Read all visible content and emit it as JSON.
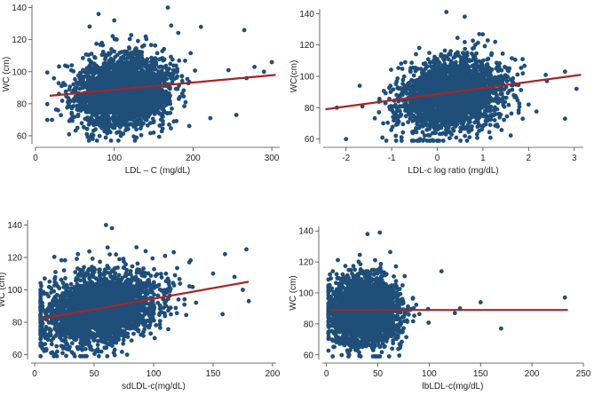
{
  "chart_data": [
    {
      "type": "scatter",
      "xlabel": "LDL – C (mg/dL)",
      "ylabel": "WC (cm)",
      "xlim": [
        0,
        310
      ],
      "ylim": [
        55,
        142
      ],
      "xticks": [
        0,
        100,
        200,
        300
      ],
      "yticks": [
        60,
        80,
        100,
        120,
        140
      ],
      "cloud": {
        "x_center": 110,
        "x_spread": 30,
        "x_min": 15,
        "x_max": 240,
        "y_center": 88,
        "y_spread": 11,
        "n": 2600
      },
      "outliers": [
        [
          168,
          140
        ],
        [
          80,
          136
        ],
        [
          100,
          132
        ],
        [
          210,
          128
        ],
        [
          265,
          126
        ],
        [
          245,
          101
        ],
        [
          300,
          106
        ],
        [
          278,
          103
        ],
        [
          255,
          73
        ],
        [
          268,
          96
        ],
        [
          290,
          100
        ],
        [
          222,
          71
        ]
      ],
      "fit_line": {
        "x": [
          18,
          305
        ],
        "y": [
          85,
          98
        ]
      }
    },
    {
      "type": "scatter",
      "xlabel": "LDL-c log ratio (mg/dL)",
      "ylabel": "WC(cm)",
      "xlim": [
        -2.5,
        3.2
      ],
      "ylim": [
        57,
        143
      ],
      "xticks": [
        -2,
        -1,
        0,
        1,
        2,
        3
      ],
      "yticks": [
        60,
        80,
        100,
        120,
        140
      ],
      "cloud": {
        "x_center": 0.3,
        "x_spread": 0.55,
        "x_min": -2.2,
        "x_max": 2.4,
        "y_center": 88,
        "y_spread": 11,
        "n": 2600
      },
      "outliers": [
        [
          0.2,
          141
        ],
        [
          0.6,
          138
        ],
        [
          2.8,
          103
        ],
        [
          3.05,
          92
        ],
        [
          2.8,
          73
        ],
        [
          2.0,
          82
        ],
        [
          -2.2,
          80
        ],
        [
          -1.7,
          94
        ],
        [
          2.4,
          97
        ],
        [
          -2.0,
          60
        ]
      ],
      "fit_line": {
        "x": [
          -2.45,
          3.15
        ],
        "y": [
          79,
          101
        ]
      }
    },
    {
      "type": "scatter",
      "xlabel": "sdLDL-c(mg/dL)",
      "ylabel": "WC (cm)",
      "xlim": [
        -3,
        203
      ],
      "ylim": [
        57,
        143
      ],
      "xticks": [
        0,
        50,
        100,
        150,
        200
      ],
      "yticks": [
        60,
        80,
        100,
        120,
        140
      ],
      "cloud": {
        "x_center": 55,
        "x_spread": 25,
        "x_min": 5,
        "x_max": 155,
        "y_center": 88,
        "y_spread": 11,
        "n": 2600
      },
      "outliers": [
        [
          60,
          140
        ],
        [
          65,
          138
        ],
        [
          178,
          125
        ],
        [
          160,
          122
        ],
        [
          175,
          100
        ],
        [
          180,
          93
        ],
        [
          150,
          110
        ],
        [
          130,
          117
        ],
        [
          168,
          108
        ],
        [
          158,
          85
        ]
      ],
      "fit_line": {
        "x": [
          5,
          180
        ],
        "y": [
          82,
          105
        ]
      }
    },
    {
      "type": "scatter",
      "xlabel": "lbLDL-c(mg/dL)",
      "ylabel": "WC (cm)",
      "xlim": [
        -4,
        250
      ],
      "ylim": [
        57,
        143
      ],
      "xticks": [
        0,
        50,
        100,
        150,
        200,
        250
      ],
      "yticks": [
        60,
        80,
        100,
        120,
        140
      ],
      "cloud": {
        "x_center": 36,
        "x_spread": 17,
        "x_min": 2,
        "x_max": 118,
        "y_center": 88,
        "y_spread": 11,
        "n": 2600
      },
      "outliers": [
        [
          52,
          139
        ],
        [
          40,
          138
        ],
        [
          232,
          97
        ],
        [
          170,
          77
        ],
        [
          150,
          94
        ],
        [
          130,
          90
        ],
        [
          125,
          87
        ],
        [
          112,
          114
        ]
      ],
      "fit_line": {
        "x": [
          3,
          235
        ],
        "y": [
          89,
          89
        ]
      }
    }
  ]
}
